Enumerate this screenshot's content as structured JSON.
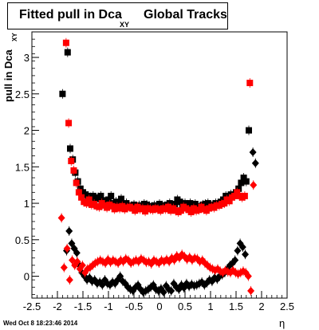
{
  "title_main": "Fitted pull in Dca",
  "title_sub": "XY",
  "title_tail": "Global Tracks",
  "ylabel_main": "pull in Dca",
  "ylabel_sub": "XY",
  "xlabel": "η",
  "timestamp": "Wed Oct  8 18:23:46 2014",
  "chart_data": {
    "type": "scatter",
    "title": "Fitted pull in Dca XY Global Tracks",
    "xlabel": "η",
    "ylabel": "pull in Dca XY",
    "xlim": [
      -2.5,
      2.5
    ],
    "ylim": [
      -0.3,
      3.35
    ],
    "grid": true,
    "x_ticks": [
      -2.5,
      -2,
      -1.5,
      -1,
      -0.5,
      0,
      0.5,
      1,
      1.5,
      2,
      2.5
    ],
    "x_tick_labels": [
      "-2.5",
      "-2",
      "-1.5",
      "-1",
      "-0.5",
      "0",
      "0.5",
      "1",
      "1.5",
      "2",
      "2.5"
    ],
    "y_ticks": [
      0,
      0.5,
      1,
      1.5,
      2,
      2.5,
      3
    ],
    "y_tick_labels": [
      "0",
      "0.5",
      "1",
      "1.5",
      "2",
      "2.5",
      "3"
    ],
    "series": [
      {
        "marker": "square",
        "color": "#000000",
        "x": [
          -1.9,
          -1.8,
          -1.75,
          -1.7,
          -1.65,
          -1.6,
          -1.55,
          -1.5,
          -1.45,
          -1.4,
          -1.35,
          -1.3,
          -1.25,
          -1.2,
          -1.15,
          -1.1,
          -1.05,
          -1.0,
          -0.95,
          -0.9,
          -0.85,
          -0.8,
          -0.75,
          -0.7,
          -0.65,
          -0.6,
          -0.55,
          -0.5,
          -0.45,
          -0.4,
          -0.35,
          -0.3,
          -0.25,
          -0.2,
          -0.15,
          -0.1,
          -0.05,
          0.0,
          0.05,
          0.1,
          0.15,
          0.2,
          0.25,
          0.3,
          0.35,
          0.4,
          0.45,
          0.5,
          0.55,
          0.6,
          0.65,
          0.7,
          0.75,
          0.8,
          0.85,
          0.9,
          0.95,
          1.0,
          1.05,
          1.1,
          1.15,
          1.2,
          1.25,
          1.3,
          1.35,
          1.4,
          1.45,
          1.5,
          1.55,
          1.6,
          1.65,
          1.7,
          1.75
        ],
        "y": [
          2.5,
          3.07,
          1.75,
          1.6,
          1.42,
          1.3,
          1.2,
          1.15,
          1.12,
          1.1,
          1.08,
          1.1,
          1.06,
          1.08,
          1.1,
          1.04,
          1.02,
          1.05,
          1.1,
          1.0,
          1.02,
          0.98,
          1.06,
          0.98,
          1.0,
          0.97,
          0.96,
          0.98,
          0.95,
          0.97,
          0.95,
          0.99,
          0.98,
          0.96,
          0.95,
          0.97,
          0.94,
          0.99,
          0.97,
          0.95,
          0.98,
          1.0,
          0.97,
          0.99,
          1.05,
          1.02,
          0.98,
          1.0,
          0.98,
          1.0,
          0.97,
          0.99,
          0.96,
          0.95,
          0.98,
          0.99,
          1.0,
          0.97,
          0.98,
          1.0,
          0.99,
          1.02,
          1.05,
          1.1,
          1.08,
          1.12,
          1.12,
          1.15,
          1.2,
          1.28,
          1.35,
          1.3,
          2.0
        ]
      },
      {
        "marker": "square",
        "color": "#ff0000",
        "x": [
          -1.83,
          -1.78,
          -1.73,
          -1.68,
          -1.63,
          -1.58,
          -1.53,
          -1.48,
          -1.43,
          -1.38,
          -1.33,
          -1.28,
          -1.23,
          -1.18,
          -1.13,
          -1.08,
          -1.03,
          -0.98,
          -0.93,
          -0.88,
          -0.83,
          -0.78,
          -0.73,
          -0.68,
          -0.63,
          -0.58,
          -0.53,
          -0.48,
          -0.43,
          -0.38,
          -0.33,
          -0.28,
          -0.23,
          -0.18,
          -0.13,
          -0.08,
          -0.03,
          0.02,
          0.07,
          0.12,
          0.17,
          0.22,
          0.27,
          0.32,
          0.37,
          0.42,
          0.47,
          0.52,
          0.57,
          0.62,
          0.67,
          0.72,
          0.77,
          0.82,
          0.87,
          0.92,
          0.97,
          1.02,
          1.07,
          1.12,
          1.17,
          1.22,
          1.27,
          1.32,
          1.37,
          1.42,
          1.47,
          1.52,
          1.57,
          1.62,
          1.67,
          1.77
        ],
        "y": [
          3.2,
          2.1,
          1.58,
          1.45,
          1.28,
          1.15,
          1.08,
          1.02,
          1.0,
          1.05,
          0.98,
          0.99,
          0.96,
          0.95,
          1.0,
          0.97,
          0.94,
          0.98,
          0.96,
          0.92,
          0.95,
          0.93,
          0.96,
          0.92,
          0.94,
          0.95,
          0.93,
          0.9,
          0.95,
          0.92,
          0.93,
          0.89,
          0.93,
          0.92,
          0.91,
          0.93,
          0.92,
          0.9,
          0.93,
          0.92,
          0.95,
          0.9,
          0.93,
          0.9,
          0.88,
          0.9,
          0.95,
          0.93,
          0.91,
          0.88,
          0.93,
          0.9,
          0.91,
          0.95,
          0.92,
          0.9,
          0.93,
          0.95,
          0.94,
          0.97,
          0.97,
          0.99,
          1.0,
          1.05,
          1.03,
          1.08,
          1.1,
          1.15,
          1.1,
          1.08,
          1.1,
          2.65
        ]
      },
      {
        "marker": "diamond",
        "color": "#000000",
        "x": [
          -1.82,
          -1.77,
          -1.72,
          -1.67,
          -1.62,
          -1.57,
          -1.52,
          -1.47,
          -1.42,
          -1.37,
          -1.32,
          -1.27,
          -1.22,
          -1.17,
          -1.12,
          -1.07,
          -1.02,
          -0.97,
          -0.92,
          -0.87,
          -0.82,
          -0.77,
          -0.72,
          -0.67,
          -0.62,
          -0.57,
          -0.52,
          -0.47,
          -0.42,
          -0.37,
          -0.32,
          -0.27,
          -0.22,
          -0.17,
          -0.12,
          -0.07,
          -0.02,
          0.03,
          0.08,
          0.13,
          0.18,
          0.23,
          0.28,
          0.33,
          0.38,
          0.43,
          0.48,
          0.53,
          0.58,
          0.63,
          0.68,
          0.73,
          0.78,
          0.83,
          0.88,
          0.93,
          0.98,
          1.03,
          1.08,
          1.13,
          1.18,
          1.23,
          1.28,
          1.33,
          1.38,
          1.43,
          1.48,
          1.53,
          1.58,
          1.63,
          1.68,
          1.83,
          1.88
        ],
        "y": [
          0.35,
          0.62,
          0.45,
          0.38,
          0.32,
          0.15,
          0.05,
          0.0,
          -0.05,
          -0.02,
          -0.07,
          -0.05,
          -0.1,
          -0.08,
          -0.12,
          -0.05,
          -0.1,
          -0.12,
          -0.08,
          -0.1,
          -0.05,
          0.0,
          -0.07,
          -0.1,
          -0.15,
          -0.18,
          -0.2,
          -0.15,
          -0.12,
          -0.18,
          -0.22,
          -0.2,
          -0.18,
          -0.15,
          -0.12,
          -0.18,
          -0.2,
          -0.17,
          -0.22,
          -0.13,
          -0.18,
          -0.2,
          -0.1,
          -0.15,
          -0.18,
          -0.12,
          -0.16,
          -0.1,
          -0.14,
          -0.11,
          -0.13,
          -0.12,
          -0.1,
          -0.08,
          -0.12,
          -0.09,
          -0.05,
          -0.07,
          -0.02,
          -0.04,
          0.0,
          0.02,
          0.05,
          0.1,
          0.15,
          0.18,
          0.22,
          0.35,
          0.45,
          0.4,
          0.3,
          1.7,
          1.55
        ]
      },
      {
        "marker": "diamond",
        "color": "#ff0000",
        "x": [
          -1.92,
          -1.87,
          -1.81,
          -1.76,
          -1.71,
          -1.66,
          -1.61,
          -1.56,
          -1.51,
          -1.46,
          -1.41,
          -1.36,
          -1.31,
          -1.26,
          -1.21,
          -1.16,
          -1.11,
          -1.06,
          -1.01,
          -0.96,
          -0.91,
          -0.86,
          -0.81,
          -0.76,
          -0.71,
          -0.66,
          -0.61,
          -0.56,
          -0.51,
          -0.46,
          -0.41,
          -0.36,
          -0.31,
          -0.26,
          -0.21,
          -0.16,
          -0.11,
          -0.06,
          -0.01,
          0.04,
          0.09,
          0.14,
          0.19,
          0.24,
          0.29,
          0.34,
          0.39,
          0.44,
          0.49,
          0.54,
          0.59,
          0.64,
          0.69,
          0.74,
          0.79,
          0.84,
          0.89,
          0.94,
          0.99,
          1.04,
          1.09,
          1.14,
          1.19,
          1.24,
          1.29,
          1.34,
          1.39,
          1.44,
          1.49,
          1.54,
          1.59,
          1.64,
          1.69,
          1.74,
          1.79,
          1.84
        ],
        "y": [
          0.8,
          0.12,
          0.38,
          -0.05,
          0.22,
          0.15,
          0.2,
          0.1,
          0.15,
          0.05,
          0.1,
          0.12,
          0.15,
          0.18,
          0.2,
          0.22,
          0.2,
          0.18,
          0.23,
          0.19,
          0.22,
          0.2,
          0.18,
          0.22,
          0.2,
          0.24,
          0.22,
          0.18,
          0.2,
          0.22,
          0.2,
          0.24,
          0.22,
          0.19,
          0.2,
          0.17,
          0.22,
          0.2,
          0.18,
          0.22,
          0.2,
          0.23,
          0.2,
          0.25,
          0.22,
          0.28,
          0.25,
          0.3,
          0.27,
          0.23,
          0.26,
          0.22,
          0.25,
          0.24,
          0.2,
          0.22,
          0.18,
          0.15,
          0.12,
          0.1,
          0.08,
          0.1,
          0.07,
          0.05,
          0.08,
          0.06,
          0.05,
          0.08,
          0.05,
          0.03,
          0.05,
          0.07,
          0.05,
          0.0,
          -0.2,
          1.25
        ]
      }
    ],
    "vertical_lines_x": [
      -1.96,
      -1.93,
      -1.88,
      -1.84,
      -1.79,
      -1.74,
      1.72,
      1.77,
      1.83,
      1.89,
      1.93
    ]
  }
}
